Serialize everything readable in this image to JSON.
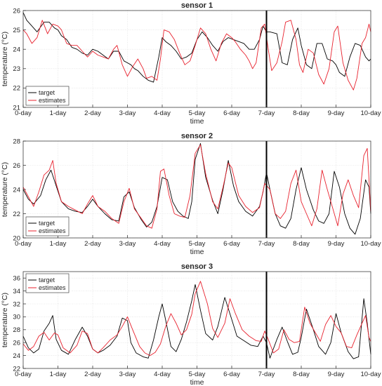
{
  "chart_data": [
    {
      "type": "line",
      "title": "sensor 1",
      "xlabel": "time",
      "ylabel": "temperature (°C)",
      "xlim": [
        0,
        10
      ],
      "ylim": [
        21,
        26
      ],
      "yticks": [
        21,
        22,
        23,
        24,
        25,
        26
      ],
      "xticks": [
        0,
        1,
        2,
        3,
        4,
        5,
        6,
        7,
        8,
        9,
        10
      ],
      "xticklabels": [
        "0-day",
        "1-day",
        "2-day",
        "3-day",
        "4-day",
        "5-day",
        "6-day",
        "7-day",
        "8-day",
        "9-day",
        "10-day"
      ],
      "split_at": 7,
      "legend_position": "bottom-left",
      "grid": true,
      "series": [
        {
          "name": "target",
          "color": "#000000",
          "x": [
            0,
            0.1,
            0.25,
            0.4,
            0.6,
            0.75,
            0.9,
            1.0,
            1.1,
            1.25,
            1.4,
            1.55,
            1.7,
            1.85,
            2.0,
            2.15,
            2.3,
            2.45,
            2.6,
            2.75,
            2.9,
            3.0,
            3.1,
            3.2,
            3.3,
            3.45,
            3.6,
            3.75,
            3.9,
            4.0,
            4.1,
            4.25,
            4.4,
            4.55,
            4.7,
            4.85,
            5.0,
            5.15,
            5.3,
            5.45,
            5.6,
            5.75,
            5.9,
            6.05,
            6.2,
            6.35,
            6.5,
            6.65,
            6.8,
            6.9,
            7.0,
            7.1,
            7.3,
            7.45,
            7.6,
            7.75,
            7.9,
            8.0,
            8.15,
            8.3,
            8.45,
            8.6,
            8.75,
            8.9,
            9.0,
            9.1,
            9.25,
            9.4,
            9.55,
            9.7,
            9.85,
            9.95,
            10.0
          ],
          "y": [
            25.9,
            25.5,
            25.2,
            24.9,
            25.4,
            25.4,
            25.1,
            25.0,
            24.7,
            24.5,
            24.1,
            24.0,
            23.8,
            23.7,
            24.0,
            23.9,
            23.7,
            23.5,
            23.9,
            23.9,
            23.4,
            23.3,
            23.2,
            23.0,
            22.9,
            22.6,
            22.4,
            22.3,
            23.6,
            24.6,
            24.4,
            24.2,
            23.9,
            23.5,
            23.6,
            23.8,
            24.5,
            24.9,
            24.6,
            24.2,
            23.9,
            24.4,
            24.6,
            24.5,
            24.4,
            24.3,
            24.0,
            24.0,
            24.5,
            25.2,
            24.9,
            24.9,
            24.8,
            23.3,
            23.2,
            24.5,
            25.1,
            24.2,
            23.2,
            23.0,
            24.3,
            24.3,
            23.5,
            23.4,
            23.2,
            22.8,
            22.6,
            23.6,
            24.3,
            24.2,
            23.6,
            23.4,
            23.5
          ]
        },
        {
          "name": "estimates",
          "color": "#e8222e",
          "x": [
            0,
            0.1,
            0.25,
            0.4,
            0.55,
            0.7,
            0.85,
            1.0,
            1.1,
            1.25,
            1.4,
            1.55,
            1.7,
            1.85,
            2.0,
            2.15,
            2.3,
            2.45,
            2.6,
            2.7,
            2.85,
            3.0,
            3.15,
            3.3,
            3.45,
            3.55,
            3.7,
            3.85,
            3.95,
            4.05,
            4.2,
            4.35,
            4.5,
            4.65,
            4.8,
            4.95,
            5.1,
            5.25,
            5.4,
            5.55,
            5.7,
            5.85,
            6.0,
            6.1,
            6.25,
            6.4,
            6.5,
            6.6,
            6.7,
            6.85,
            6.95,
            7.05,
            7.15,
            7.3,
            7.45,
            7.55,
            7.7,
            7.85,
            7.95,
            8.05,
            8.2,
            8.35,
            8.5,
            8.65,
            8.8,
            8.95,
            9.05,
            9.2,
            9.35,
            9.5,
            9.6,
            9.75,
            9.85,
            9.95,
            10.0
          ],
          "y": [
            25.0,
            24.8,
            24.3,
            24.6,
            25.5,
            24.8,
            25.3,
            25.2,
            25.0,
            24.3,
            24.2,
            24.2,
            23.9,
            23.6,
            23.9,
            23.7,
            23.6,
            23.5,
            24.0,
            24.2,
            23.2,
            22.6,
            23.1,
            23.5,
            23.0,
            22.5,
            22.6,
            22.4,
            23.5,
            25.0,
            24.9,
            24.5,
            23.8,
            23.2,
            23.4,
            24.2,
            25.1,
            24.8,
            24.0,
            23.4,
            24.3,
            24.8,
            24.6,
            24.4,
            24.0,
            23.7,
            23.4,
            23.0,
            23.3,
            25.1,
            25.3,
            24.0,
            22.9,
            23.3,
            24.4,
            25.4,
            25.5,
            24.5,
            23.2,
            22.8,
            24.0,
            23.8,
            22.7,
            22.2,
            23.0,
            24.9,
            25.2,
            23.3,
            22.4,
            21.9,
            22.5,
            24.3,
            24.6,
            25.3,
            24.9
          ]
        }
      ]
    },
    {
      "type": "line",
      "title": "sensor 2",
      "xlabel": "time",
      "ylabel": "temperature (°C)",
      "xlim": [
        0,
        10
      ],
      "ylim": [
        20,
        28
      ],
      "yticks": [
        20,
        22,
        24,
        26,
        28
      ],
      "xticks": [
        0,
        1,
        2,
        3,
        4,
        5,
        6,
        7,
        8,
        9,
        10
      ],
      "xticklabels": [
        "0-day",
        "1-day",
        "2-day",
        "3-day",
        "4-day",
        "5-day",
        "6-day",
        "7-day",
        "8-day",
        "9-day",
        "10-day"
      ],
      "split_at": 7,
      "legend_position": "bottom-left",
      "grid": true,
      "series": [
        {
          "name": "target",
          "color": "#000000",
          "x": [
            0,
            0.15,
            0.3,
            0.5,
            0.65,
            0.8,
            0.95,
            1.1,
            1.3,
            1.5,
            1.7,
            1.85,
            2.0,
            2.15,
            2.35,
            2.55,
            2.75,
            2.9,
            3.05,
            3.2,
            3.4,
            3.55,
            3.7,
            3.85,
            4.0,
            4.15,
            4.3,
            4.45,
            4.6,
            4.75,
            4.85,
            4.95,
            5.1,
            5.25,
            5.45,
            5.6,
            5.75,
            5.9,
            6.05,
            6.2,
            6.4,
            6.6,
            6.8,
            6.9,
            7.0,
            7.1,
            7.25,
            7.4,
            7.55,
            7.7,
            7.85,
            8.0,
            8.15,
            8.35,
            8.5,
            8.65,
            8.8,
            8.95,
            9.1,
            9.25,
            9.4,
            9.55,
            9.7,
            9.85,
            9.95,
            10.0
          ],
          "y": [
            24.0,
            23.2,
            22.8,
            23.5,
            24.8,
            25.6,
            24.3,
            23.0,
            22.4,
            22.2,
            22.1,
            22.6,
            23.2,
            22.6,
            22.0,
            21.5,
            21.4,
            23.4,
            23.8,
            22.5,
            21.5,
            20.9,
            21.3,
            22.6,
            25.0,
            24.8,
            23.0,
            22.2,
            21.8,
            21.6,
            23.0,
            26.5,
            27.8,
            25.0,
            23.1,
            22.0,
            24.0,
            26.4,
            24.3,
            23.0,
            22.2,
            21.8,
            22.6,
            23.8,
            25.4,
            24.0,
            22.0,
            21.0,
            20.8,
            21.6,
            24.0,
            25.8,
            24.0,
            22.3,
            21.4,
            21.2,
            22.0,
            25.5,
            24.2,
            22.0,
            20.8,
            20.3,
            21.6,
            24.8,
            24.2,
            22.0
          ]
        },
        {
          "name": "estimates",
          "color": "#e8222e",
          "x": [
            0,
            0.15,
            0.3,
            0.45,
            0.6,
            0.75,
            0.85,
            0.95,
            1.1,
            1.3,
            1.5,
            1.7,
            1.85,
            2.0,
            2.15,
            2.35,
            2.55,
            2.75,
            2.9,
            3.05,
            3.2,
            3.4,
            3.55,
            3.7,
            3.85,
            3.95,
            4.05,
            4.2,
            4.35,
            4.5,
            4.65,
            4.8,
            4.95,
            5.1,
            5.25,
            5.45,
            5.6,
            5.75,
            5.9,
            6.0,
            6.2,
            6.4,
            6.6,
            6.8,
            6.95,
            7.1,
            7.25,
            7.4,
            7.55,
            7.7,
            7.85,
            8.0,
            8.15,
            8.3,
            8.45,
            8.6,
            8.75,
            8.9,
            9.05,
            9.2,
            9.35,
            9.5,
            9.65,
            9.8,
            9.9,
            10.0
          ],
          "y": [
            24.2,
            23.4,
            22.6,
            23.8,
            25.2,
            25.6,
            26.4,
            24.5,
            23.0,
            22.6,
            22.3,
            22.0,
            22.8,
            23.5,
            22.6,
            22.2,
            21.6,
            21.2,
            23.0,
            24.1,
            22.4,
            21.6,
            21.0,
            20.8,
            22.4,
            25.5,
            25.7,
            23.5,
            22.0,
            21.8,
            21.7,
            23.5,
            27.0,
            27.7,
            25.3,
            23.0,
            22.4,
            24.2,
            26.2,
            25.8,
            23.5,
            22.6,
            22.1,
            22.5,
            24.5,
            24.0,
            22.0,
            21.6,
            22.2,
            24.5,
            25.6,
            23.0,
            22.0,
            21.0,
            22.4,
            25.6,
            24.0,
            22.5,
            21.0,
            23.6,
            24.8,
            23.5,
            22.5,
            26.8,
            27.4,
            22.2
          ]
        }
      ]
    },
    {
      "type": "line",
      "title": "sensor 3",
      "xlabel": "time",
      "ylabel": "temperature (°C)",
      "xlim": [
        0,
        10
      ],
      "ylim": [
        22,
        37
      ],
      "yticks": [
        22,
        24,
        26,
        28,
        30,
        32,
        34,
        36
      ],
      "xticks": [
        0,
        1,
        2,
        3,
        4,
        5,
        6,
        7,
        8,
        9,
        10
      ],
      "xticklabels": [
        "0-day",
        "1-day",
        "2-day",
        "3-day",
        "4-day",
        "5-day",
        "6-day",
        "7-day",
        "8-day",
        "9-day",
        "10-day"
      ],
      "split_at": 7,
      "legend_position": "top-left",
      "grid": true,
      "series": [
        {
          "name": "target",
          "color": "#000000",
          "x": [
            0,
            0.15,
            0.3,
            0.45,
            0.6,
            0.75,
            0.85,
            0.95,
            1.1,
            1.3,
            1.5,
            1.7,
            1.85,
            2.0,
            2.15,
            2.3,
            2.5,
            2.7,
            2.85,
            3.0,
            3.1,
            3.25,
            3.45,
            3.6,
            3.75,
            3.9,
            4.0,
            4.1,
            4.25,
            4.4,
            4.55,
            4.7,
            4.85,
            4.95,
            5.1,
            5.25,
            5.45,
            5.6,
            5.8,
            6.0,
            6.15,
            6.35,
            6.55,
            6.75,
            6.9,
            7.0,
            7.1,
            7.3,
            7.45,
            7.6,
            7.75,
            7.9,
            8.0,
            8.15,
            8.35,
            8.5,
            8.7,
            8.85,
            9.0,
            9.15,
            9.35,
            9.5,
            9.65,
            9.8,
            9.9,
            10.0
          ],
          "y": [
            27.0,
            25.2,
            24.4,
            25.0,
            27.8,
            29.0,
            30.2,
            26.5,
            24.8,
            24.2,
            26.5,
            28.4,
            27.0,
            25.0,
            24.4,
            24.8,
            25.6,
            27.0,
            29.8,
            29.4,
            26.0,
            24.4,
            23.8,
            23.6,
            26.4,
            30.0,
            32.0,
            29.5,
            25.4,
            24.6,
            26.5,
            29.2,
            32.5,
            35.0,
            31.0,
            27.4,
            26.4,
            28.5,
            33.0,
            29.6,
            27.0,
            26.3,
            25.6,
            25.4,
            27.0,
            26.0,
            23.6,
            26.5,
            28.4,
            26.2,
            24.2,
            24.5,
            26.8,
            31.2,
            28.0,
            25.4,
            24.2,
            26.0,
            30.5,
            27.5,
            24.6,
            23.5,
            23.8,
            32.8,
            29.0,
            24.2
          ]
        },
        {
          "name": "estimates",
          "color": "#e8222e",
          "x": [
            0,
            0.15,
            0.3,
            0.45,
            0.6,
            0.75,
            0.9,
            1.0,
            1.15,
            1.35,
            1.55,
            1.7,
            1.85,
            2.0,
            2.15,
            2.3,
            2.5,
            2.7,
            2.85,
            3.0,
            3.15,
            3.35,
            3.5,
            3.65,
            3.8,
            3.95,
            4.1,
            4.25,
            4.4,
            4.55,
            4.7,
            4.85,
            4.95,
            5.1,
            5.3,
            5.45,
            5.6,
            5.8,
            5.95,
            6.1,
            6.3,
            6.5,
            6.7,
            6.85,
            6.95,
            7.05,
            7.2,
            7.35,
            7.5,
            7.65,
            7.8,
            7.95,
            8.1,
            8.25,
            8.4,
            8.55,
            8.7,
            8.85,
            9.0,
            9.15,
            9.3,
            9.45,
            9.6,
            9.75,
            9.85,
            9.95,
            10.0
          ],
          "y": [
            25.8,
            24.8,
            25.4,
            27.0,
            27.6,
            26.4,
            27.5,
            27.2,
            25.2,
            24.4,
            25.6,
            27.8,
            27.4,
            25.0,
            24.4,
            25.2,
            26.4,
            27.2,
            28.5,
            30.0,
            28.0,
            25.4,
            24.4,
            24.0,
            24.5,
            25.8,
            28.5,
            30.5,
            29.0,
            27.2,
            28.0,
            30.4,
            33.6,
            35.5,
            32.0,
            28.2,
            26.8,
            29.0,
            32.8,
            30.6,
            28.0,
            27.0,
            26.3,
            26.2,
            27.8,
            26.5,
            24.4,
            25.0,
            28.0,
            26.5,
            26.0,
            26.2,
            31.5,
            29.0,
            27.6,
            26.2,
            28.8,
            30.2,
            28.5,
            27.5,
            25.4,
            25.2,
            27.2,
            29.0,
            30.2,
            26.8,
            26.2
          ]
        }
      ]
    }
  ]
}
